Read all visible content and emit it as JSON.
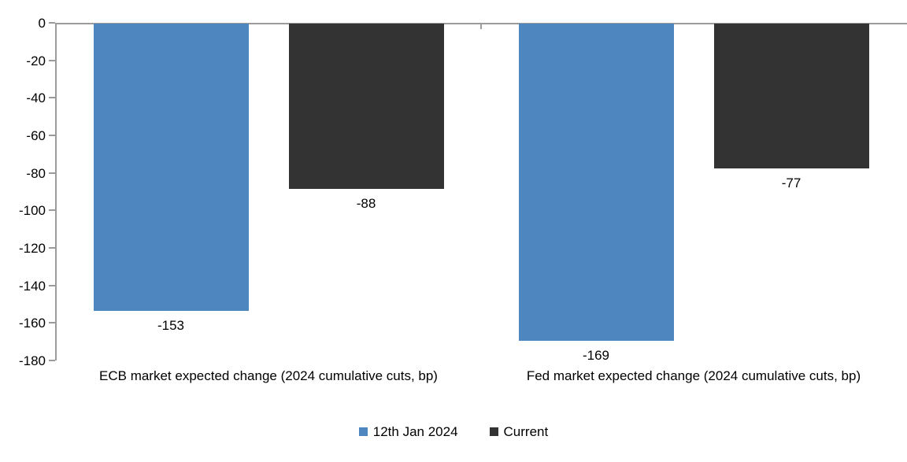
{
  "chart_data": {
    "type": "bar",
    "title": "",
    "xlabel": "",
    "ylabel": "",
    "categories": [
      "ECB market expected change (2024 cumulative cuts, bp)",
      "Fed market expected change (2024 cumulative cuts, bp)"
    ],
    "series": [
      {
        "name": "12th Jan 2024",
        "color": "#4e87c0",
        "values": [
          -153,
          -169
        ]
      },
      {
        "name": "Current",
        "color": "#333333",
        "values": [
          -88,
          -77
        ]
      }
    ],
    "data_labels": [
      [
        "-153",
        "-169"
      ],
      [
        "-88",
        "-77"
      ]
    ],
    "ylim": [
      -180,
      0
    ],
    "ytick_step": 20,
    "ytick_labels": [
      "0",
      "-20",
      "-40",
      "-60",
      "-80",
      "-100",
      "-120",
      "-140",
      "-160",
      "-180"
    ],
    "grid": false,
    "legend_position": "bottom",
    "axis_color": "#9b9b9b",
    "text_color": "#000000",
    "background_color": "#ffffff"
  }
}
